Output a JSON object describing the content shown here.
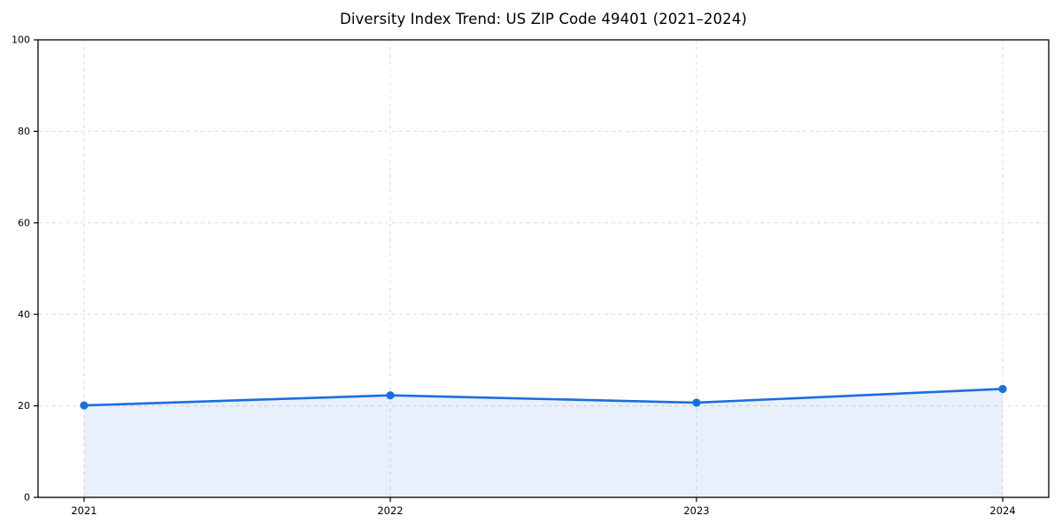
{
  "figure": {
    "background": "#ffffff"
  },
  "chart_data": {
    "type": "line",
    "title": "Diversity Index Trend: US ZIP Code 49401 (2021–2024)",
    "x": [
      2021,
      2022,
      2023,
      2024
    ],
    "x_tick_labels": [
      "2021",
      "2022",
      "2023",
      "2024"
    ],
    "series": [
      {
        "name": "Diversity Index",
        "values": [
          20.1,
          22.3,
          20.7,
          23.7
        ]
      }
    ],
    "y_ticks": [
      0,
      20,
      40,
      60,
      80,
      100
    ],
    "y_tick_labels": [
      "0",
      "20",
      "40",
      "60",
      "80",
      "100"
    ],
    "ylim": [
      0,
      100
    ],
    "xlabel": "",
    "ylabel": "",
    "grid": true,
    "grid_style": "dashed",
    "legend_position": "none",
    "line_color": "#1a6ee0",
    "marker": "circle",
    "area_fill": true,
    "area_fill_color": "#1a6ee0",
    "area_fill_opacity": 0.1,
    "grid_color": "#dcdcdc",
    "axis_color": "#000000",
    "tick_label_color": "#000000"
  }
}
